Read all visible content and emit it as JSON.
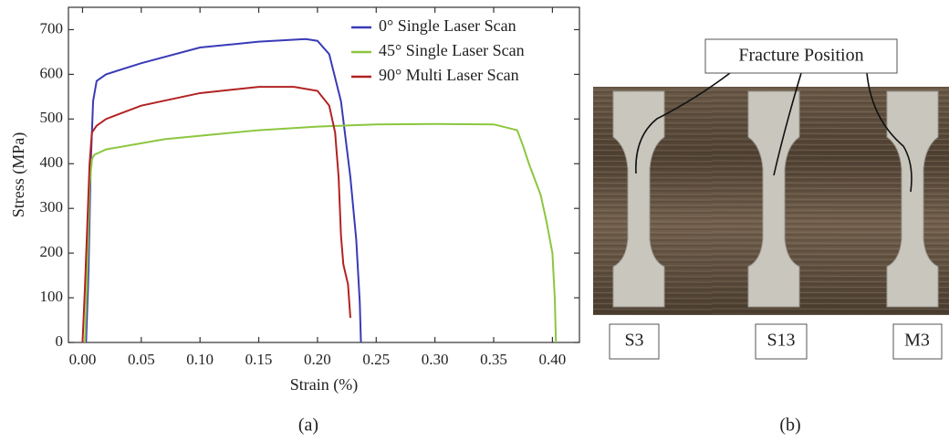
{
  "chart_data": {
    "type": "line",
    "x_label": "Strain (%)",
    "y_label": "Stress (MPa)",
    "xlim": [
      -0.012,
      0.423
    ],
    "ylim": [
      0,
      750
    ],
    "xticks": [
      {
        "value": 0,
        "label": "0.00"
      },
      {
        "value": 0.05,
        "label": "0.05"
      },
      {
        "value": 0.1,
        "label": "0.10"
      },
      {
        "value": 0.15,
        "label": "0.15"
      },
      {
        "value": 0.2,
        "label": "0.20"
      },
      {
        "value": 0.25,
        "label": "0.25"
      },
      {
        "value": 0.3,
        "label": "0.30"
      },
      {
        "value": 0.35,
        "label": "0.35"
      },
      {
        "value": 0.4,
        "label": "0.40"
      }
    ],
    "yticks": [
      0,
      100,
      200,
      300,
      400,
      500,
      600,
      700
    ],
    "legend": "upper right",
    "series": [
      {
        "name": "0° Single Laser Scan",
        "color": "#3a3ab8",
        "x": [
          0.003,
          0.005,
          0.007,
          0.009,
          0.012,
          0.02,
          0.05,
          0.1,
          0.15,
          0.19,
          0.2,
          0.21,
          0.22,
          0.228,
          0.233,
          0.236,
          0.237
        ],
        "values": [
          0,
          150,
          400,
          540,
          585,
          600,
          625,
          660,
          673,
          679,
          675,
          645,
          540,
          370,
          230,
          90,
          0
        ]
      },
      {
        "name": "45° Single Laser Scan",
        "color": "#8cc63f",
        "x": [
          0.002,
          0.004,
          0.006,
          0.008,
          0.01,
          0.02,
          0.07,
          0.15,
          0.2,
          0.25,
          0.3,
          0.35,
          0.37,
          0.375,
          0.38,
          0.39,
          0.395,
          0.4,
          0.402,
          0.403
        ],
        "values": [
          0,
          150,
          350,
          410,
          420,
          432,
          455,
          475,
          483,
          488,
          489,
          488,
          475,
          440,
          400,
          330,
          270,
          200,
          100,
          0
        ]
      },
      {
        "name": "90° Multi Laser Scan",
        "color": "#b22222",
        "x": [
          0,
          0.002,
          0.004,
          0.006,
          0.008,
          0.012,
          0.02,
          0.05,
          0.1,
          0.15,
          0.18,
          0.2,
          0.21,
          0.215,
          0.218,
          0.22,
          0.222,
          0.226,
          0.228
        ],
        "values": [
          0,
          120,
          260,
          400,
          470,
          485,
          500,
          530,
          558,
          572,
          572,
          563,
          530,
          470,
          370,
          240,
          175,
          130,
          55
        ]
      }
    ]
  },
  "panel_labels": [
    "(a)",
    "(b)"
  ],
  "photo": {
    "annotation": "Fracture Position",
    "specimens": [
      "S3",
      "S13",
      "M3"
    ]
  }
}
